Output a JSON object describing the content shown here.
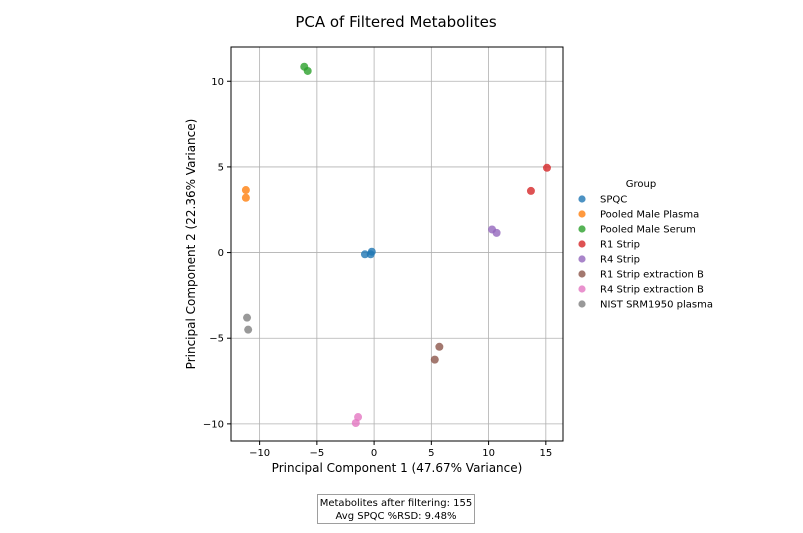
{
  "chart_data": {
    "type": "scatter",
    "title": "PCA of Filtered Metabolites",
    "xlabel": "Principal Component 1 (47.67% Variance)",
    "ylabel": "Principal Component 2 (22.36% Variance)",
    "xlim": [
      -12.5,
      16.5
    ],
    "ylim": [
      -11,
      12
    ],
    "xticks": [
      -10,
      -5,
      0,
      5,
      10,
      15
    ],
    "yticks": [
      -10,
      -5,
      0,
      5,
      10
    ],
    "grid": true,
    "legend_title": "Group",
    "legend_position": "right",
    "series": [
      {
        "name": "SPQC",
        "color": "#1f77b4",
        "points": [
          [
            -0.8,
            -0.1
          ],
          [
            -0.3,
            -0.1
          ],
          [
            -0.2,
            0.05
          ]
        ]
      },
      {
        "name": "Pooled Male Plasma",
        "color": "#ff7f0e",
        "points": [
          [
            -11.2,
            3.65
          ],
          [
            -11.2,
            3.2
          ]
        ]
      },
      {
        "name": "Pooled Male Serum",
        "color": "#2ca02c",
        "points": [
          [
            -6.1,
            10.85
          ],
          [
            -5.8,
            10.6
          ]
        ]
      },
      {
        "name": "R1 Strip",
        "color": "#d62728",
        "points": [
          [
            13.7,
            3.6
          ],
          [
            15.1,
            4.95
          ]
        ]
      },
      {
        "name": "R4 Strip",
        "color": "#9467bd",
        "points": [
          [
            10.3,
            1.35
          ],
          [
            10.7,
            1.15
          ]
        ]
      },
      {
        "name": "R1 Strip extraction B",
        "color": "#8c564b",
        "points": [
          [
            5.7,
            -5.5
          ],
          [
            5.3,
            -6.25
          ]
        ]
      },
      {
        "name": "R4 Strip extraction B",
        "color": "#e377c2",
        "points": [
          [
            -1.4,
            -9.6
          ],
          [
            -1.6,
            -9.95
          ]
        ]
      },
      {
        "name": "NIST SRM1950 plasma",
        "color": "#7f7f7f",
        "points": [
          [
            -11.1,
            -3.8
          ],
          [
            -11.0,
            -4.5
          ]
        ]
      }
    ]
  },
  "annotation": {
    "line1": "Metabolites after filtering: 155",
    "line2": "Avg SPQC %RSD: 9.48%"
  }
}
